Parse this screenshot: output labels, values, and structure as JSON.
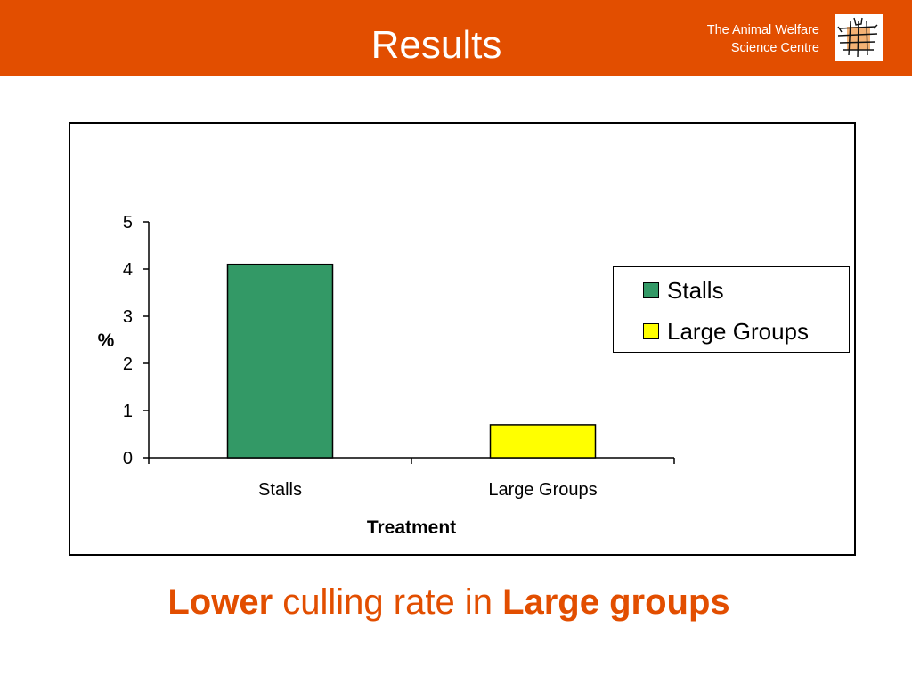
{
  "header": {
    "title": "Results",
    "org_line1": "The Animal Welfare",
    "org_line2": "Science Centre",
    "logo_icon": "animal-welfare-logo-icon",
    "bg_color": "#e24e00"
  },
  "chart_data": {
    "type": "bar",
    "categories": [
      "Stalls",
      "Large Groups"
    ],
    "values": [
      4.1,
      0.7
    ],
    "colors": [
      "#339966",
      "#ffff00"
    ],
    "xlabel": "Treatment",
    "ylabel": "%",
    "ylim": [
      0,
      5
    ],
    "yticks": [
      0,
      1,
      2,
      3,
      4,
      5
    ],
    "grid": false,
    "legend": {
      "placement": "right",
      "entries": [
        "Stalls",
        "Large Groups"
      ]
    }
  },
  "caption": {
    "part1": "Lower",
    "part2": " culling rate in ",
    "part3": "Large groups"
  }
}
